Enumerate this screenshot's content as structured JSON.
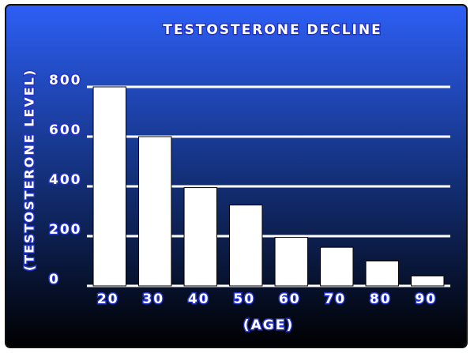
{
  "chart_data": {
    "type": "bar",
    "title": "TESTOSTERONE DECLINE",
    "x_label": "(AGE)",
    "y_label": "(TESTOSTERONE LEVEL)",
    "categories": [
      "20",
      "30",
      "40",
      "50",
      "60",
      "70",
      "80",
      "90"
    ],
    "values": [
      800,
      600,
      395,
      325,
      195,
      155,
      100,
      40
    ],
    "color": "#ffffff",
    "ylim": [
      0,
      800
    ],
    "yticks": [
      0,
      200,
      400,
      600,
      800
    ],
    "grid": true
  }
}
